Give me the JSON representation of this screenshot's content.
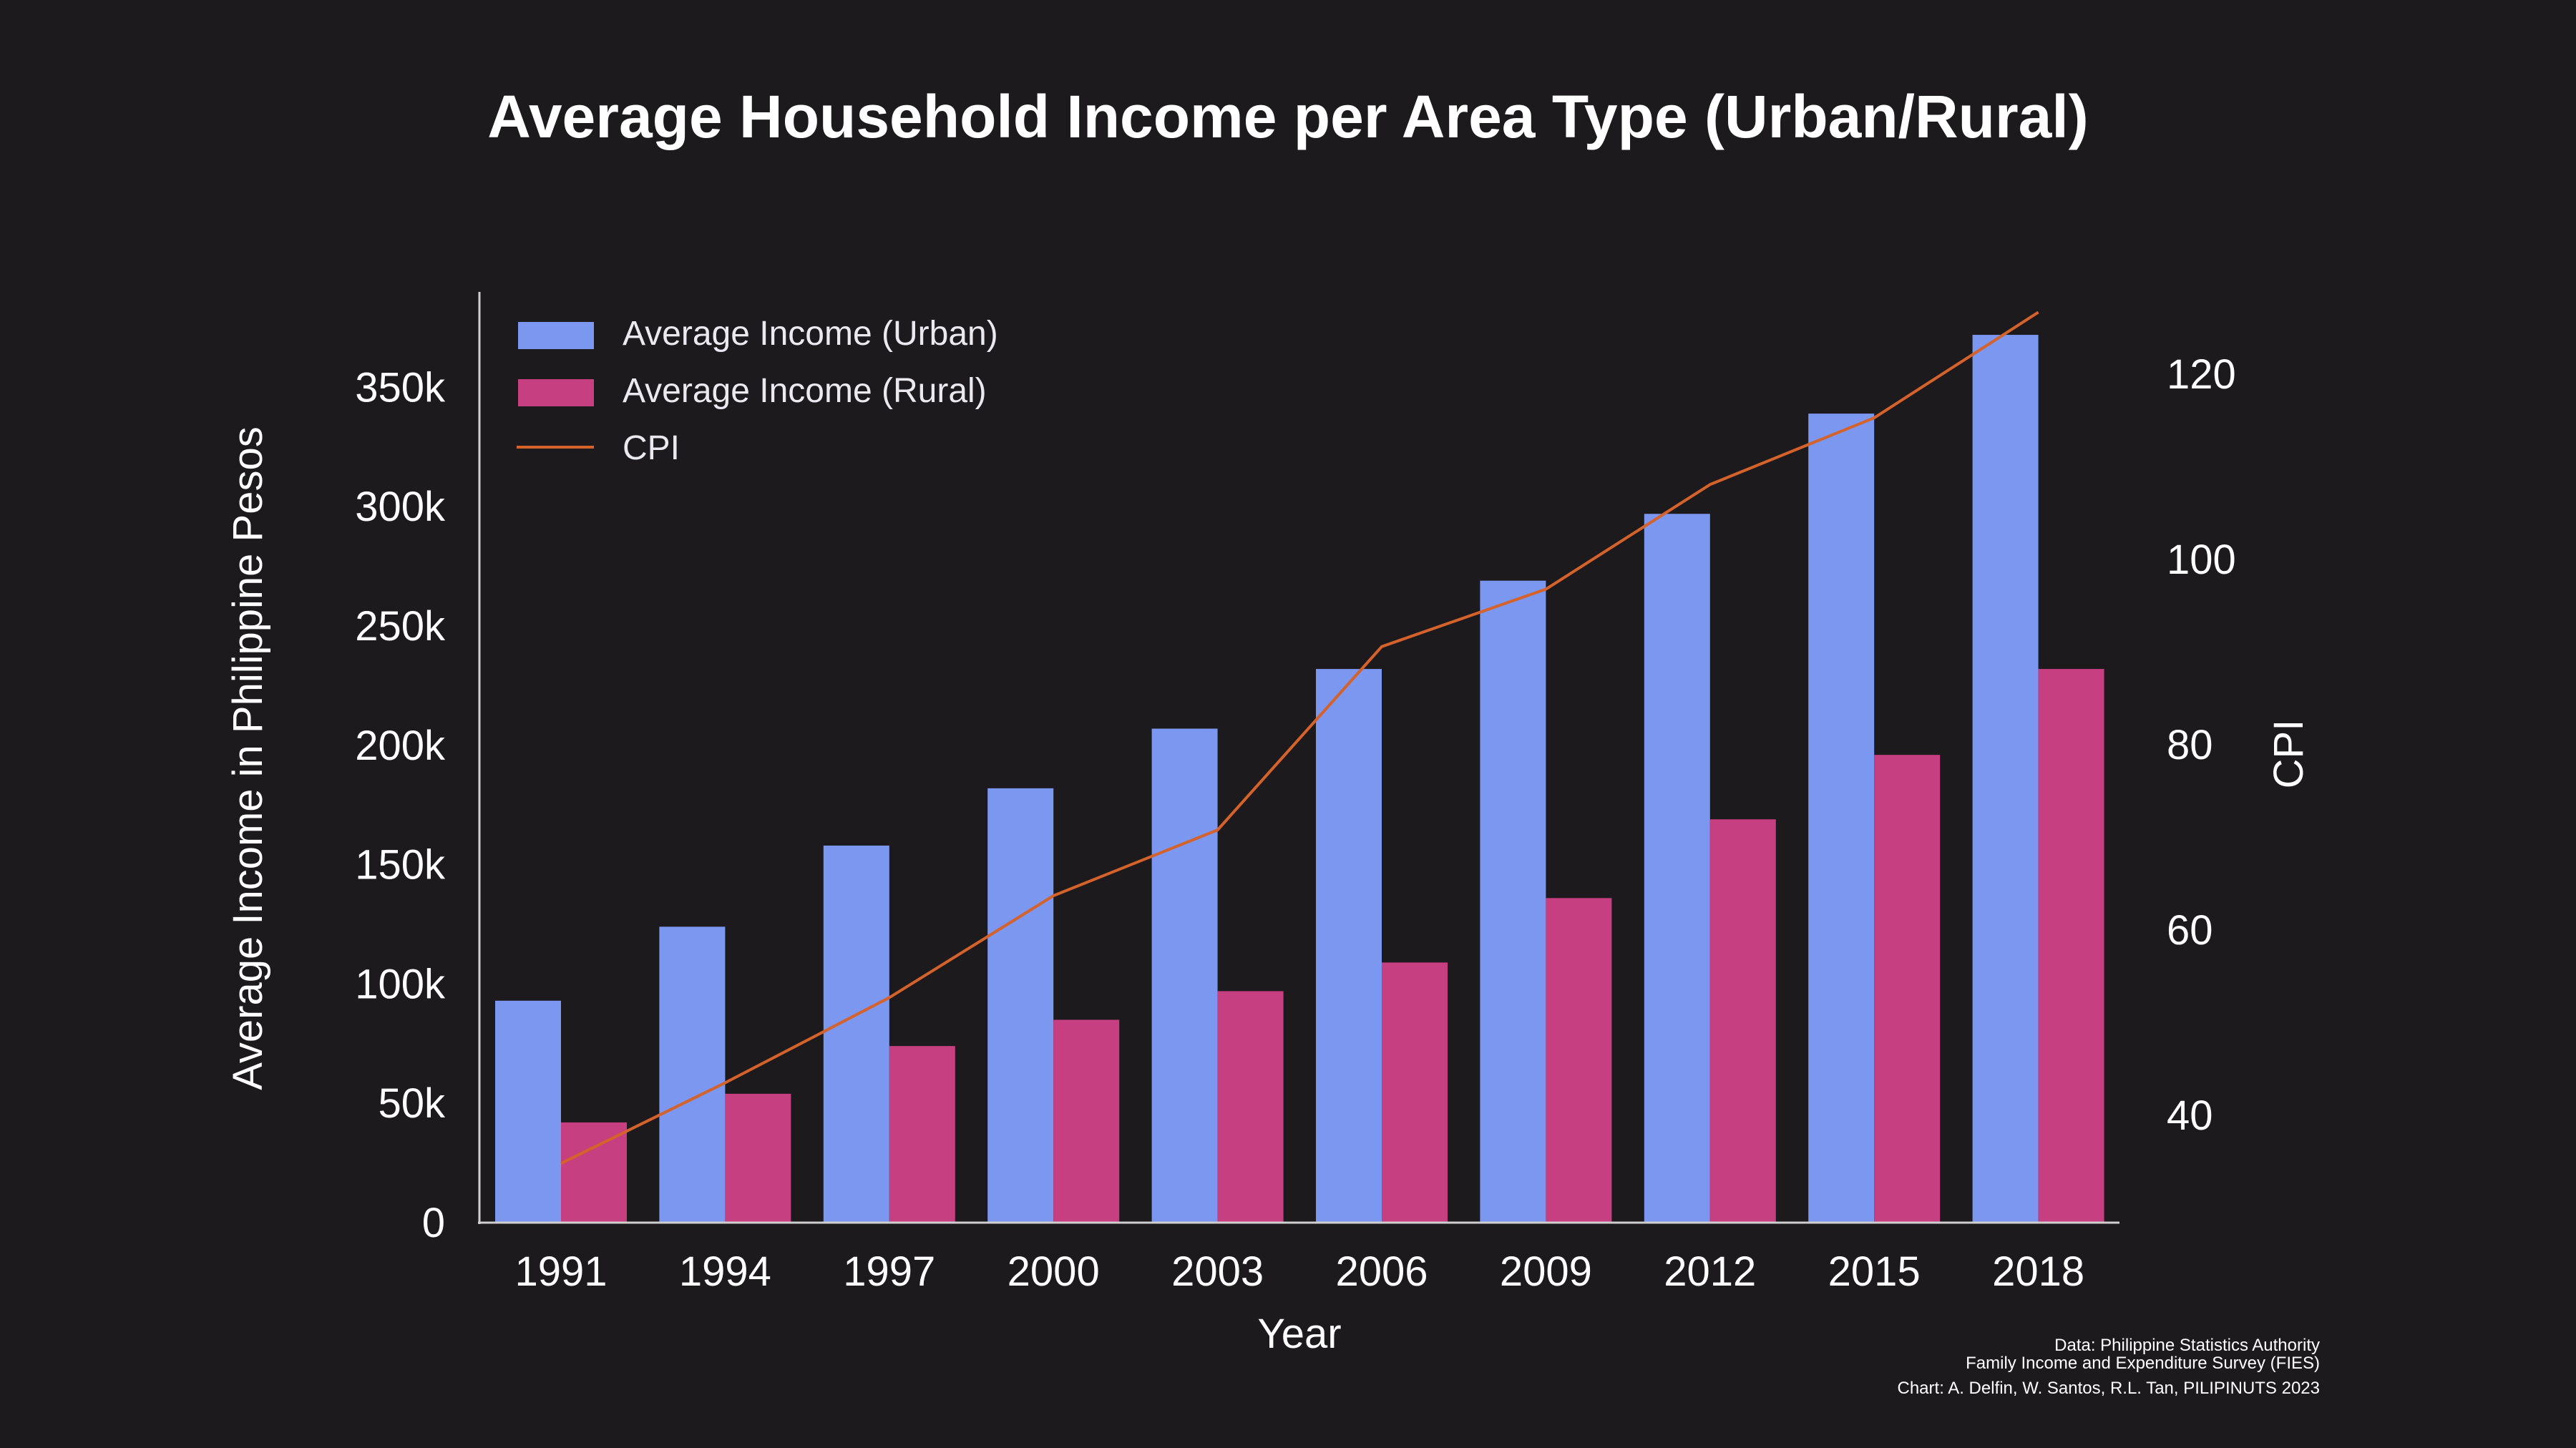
{
  "chart_data": {
    "type": "bar",
    "title": "Average Household Income per Area Type (Urban/Rural)",
    "xlabel": "Year",
    "ylabel": "Average Income in Philippine Pesos",
    "y2label": "CPI",
    "categories": [
      "1991",
      "1994",
      "1997",
      "2000",
      "2003",
      "2006",
      "2009",
      "2012",
      "2015",
      "2018"
    ],
    "series": [
      {
        "name": "Average Income (Urban)",
        "type": "bar",
        "axis": "left",
        "color": "#7b97ef",
        "values": [
          93000,
          124000,
          158000,
          182000,
          207000,
          232000,
          269000,
          297000,
          339000,
          372000
        ]
      },
      {
        "name": "Average Income (Rural)",
        "type": "bar",
        "axis": "left",
        "color": "#c63f81",
        "values": [
          42000,
          54000,
          74000,
          85000,
          97000,
          109000,
          136000,
          169000,
          196000,
          232000
        ]
      },
      {
        "name": "CPI",
        "type": "line",
        "axis": "right",
        "color": "#d4622a",
        "values": [
          34.8,
          43.5,
          52.7,
          63.7,
          70.8,
          90.6,
          96.8,
          108.1,
          115.3,
          126.7
        ]
      }
    ],
    "ylim": [
      0,
      390000
    ],
    "y_ticks": [
      0,
      50000,
      100000,
      150000,
      200000,
      250000,
      300000,
      350000
    ],
    "y_tick_labels": [
      "0",
      "50k",
      "100k",
      "150k",
      "200k",
      "250k",
      "300k",
      "350k"
    ],
    "y2lim": [
      28.4,
      128.9
    ],
    "y2_ticks": [
      40,
      60,
      80,
      100,
      120
    ],
    "y2_tick_labels": [
      "40",
      "60",
      "80",
      "100",
      "120"
    ],
    "legend_position": "top-left",
    "grid": false,
    "background_color": "#1c1a1d",
    "axis_color": "#cfcfcf",
    "credits": [
      "Data: Philippine Statistics Authority",
      "Family Income and Expenditure Survey (FIES)",
      "Chart: A. Delfin, W. Santos, R.L. Tan, PILIPINUTS 2023"
    ]
  }
}
